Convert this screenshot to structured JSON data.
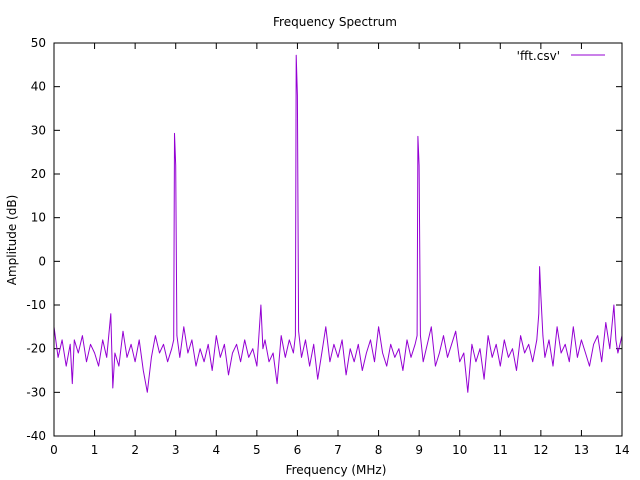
{
  "chart_data": {
    "type": "line",
    "title": "Frequency Spectrum",
    "xlabel": "Frequency (MHz)",
    "ylabel": "Amplitude (dB)",
    "xlim": [
      0,
      14
    ],
    "ylim": [
      -40,
      50
    ],
    "x_ticks": [
      0,
      1,
      2,
      3,
      4,
      5,
      6,
      7,
      8,
      9,
      10,
      11,
      12,
      13,
      14
    ],
    "y_ticks": [
      -40,
      -30,
      -20,
      -10,
      0,
      10,
      20,
      30,
      40,
      50
    ],
    "grid": false,
    "legend_position": "top-right",
    "series": [
      {
        "name": "'fft.csv'",
        "color": "#9400d3",
        "noise_floor_db": -21,
        "peaks": [
          {
            "x": 2.97,
            "y": 29.3
          },
          {
            "x": 5.97,
            "y": 47.2
          },
          {
            "x": 8.97,
            "y": 28.6
          },
          {
            "x": 11.97,
            "y": -1.2
          }
        ],
        "points": [
          [
            0.0,
            -15
          ],
          [
            0.1,
            -22
          ],
          [
            0.2,
            -18
          ],
          [
            0.3,
            -24
          ],
          [
            0.4,
            -19
          ],
          [
            0.45,
            -28
          ],
          [
            0.5,
            -18
          ],
          [
            0.6,
            -21
          ],
          [
            0.7,
            -17
          ],
          [
            0.8,
            -23
          ],
          [
            0.9,
            -19
          ],
          [
            1.0,
            -21
          ],
          [
            1.1,
            -24
          ],
          [
            1.2,
            -18
          ],
          [
            1.3,
            -22
          ],
          [
            1.4,
            -12
          ],
          [
            1.45,
            -29
          ],
          [
            1.5,
            -21
          ],
          [
            1.6,
            -24
          ],
          [
            1.7,
            -16
          ],
          [
            1.8,
            -22
          ],
          [
            1.9,
            -19
          ],
          [
            2.0,
            -23
          ],
          [
            2.1,
            -18
          ],
          [
            2.2,
            -25
          ],
          [
            2.3,
            -30
          ],
          [
            2.4,
            -22
          ],
          [
            2.5,
            -17
          ],
          [
            2.6,
            -21
          ],
          [
            2.7,
            -19
          ],
          [
            2.8,
            -23
          ],
          [
            2.9,
            -20
          ],
          [
            2.95,
            -18
          ],
          [
            2.97,
            29.3
          ],
          [
            3.0,
            22
          ],
          [
            3.03,
            -17
          ],
          [
            3.1,
            -22
          ],
          [
            3.2,
            -15
          ],
          [
            3.3,
            -21
          ],
          [
            3.4,
            -18
          ],
          [
            3.5,
            -24
          ],
          [
            3.6,
            -20
          ],
          [
            3.7,
            -23
          ],
          [
            3.8,
            -19
          ],
          [
            3.9,
            -25
          ],
          [
            4.0,
            -17
          ],
          [
            4.1,
            -22
          ],
          [
            4.2,
            -19
          ],
          [
            4.3,
            -26
          ],
          [
            4.4,
            -21
          ],
          [
            4.5,
            -19
          ],
          [
            4.6,
            -23
          ],
          [
            4.7,
            -18
          ],
          [
            4.8,
            -22
          ],
          [
            4.9,
            -20
          ],
          [
            5.0,
            -24
          ],
          [
            5.05,
            -17
          ],
          [
            5.1,
            -10
          ],
          [
            5.15,
            -20
          ],
          [
            5.2,
            -18
          ],
          [
            5.3,
            -23
          ],
          [
            5.4,
            -21
          ],
          [
            5.5,
            -28
          ],
          [
            5.6,
            -17
          ],
          [
            5.7,
            -22
          ],
          [
            5.8,
            -18
          ],
          [
            5.9,
            -21
          ],
          [
            5.95,
            -17
          ],
          [
            5.97,
            47.2
          ],
          [
            6.0,
            38
          ],
          [
            6.03,
            -16
          ],
          [
            6.1,
            -22
          ],
          [
            6.2,
            -18
          ],
          [
            6.3,
            -24
          ],
          [
            6.4,
            -19
          ],
          [
            6.5,
            -27
          ],
          [
            6.6,
            -21
          ],
          [
            6.7,
            -15
          ],
          [
            6.8,
            -23
          ],
          [
            6.9,
            -19
          ],
          [
            7.0,
            -22
          ],
          [
            7.1,
            -18
          ],
          [
            7.2,
            -26
          ],
          [
            7.3,
            -20
          ],
          [
            7.4,
            -23
          ],
          [
            7.5,
            -19
          ],
          [
            7.6,
            -25
          ],
          [
            7.7,
            -21
          ],
          [
            7.8,
            -18
          ],
          [
            7.9,
            -23
          ],
          [
            8.0,
            -15
          ],
          [
            8.1,
            -21
          ],
          [
            8.2,
            -24
          ],
          [
            8.3,
            -19
          ],
          [
            8.4,
            -22
          ],
          [
            8.5,
            -20
          ],
          [
            8.6,
            -25
          ],
          [
            8.7,
            -18
          ],
          [
            8.8,
            -22
          ],
          [
            8.9,
            -19
          ],
          [
            8.95,
            -17
          ],
          [
            8.97,
            28.6
          ],
          [
            9.0,
            22
          ],
          [
            9.03,
            -17
          ],
          [
            9.1,
            -23
          ],
          [
            9.2,
            -19
          ],
          [
            9.3,
            -15
          ],
          [
            9.4,
            -24
          ],
          [
            9.5,
            -21
          ],
          [
            9.6,
            -17
          ],
          [
            9.7,
            -22
          ],
          [
            9.8,
            -19
          ],
          [
            9.9,
            -16
          ],
          [
            10.0,
            -23
          ],
          [
            10.1,
            -21
          ],
          [
            10.2,
            -30
          ],
          [
            10.3,
            -19
          ],
          [
            10.4,
            -23
          ],
          [
            10.5,
            -20
          ],
          [
            10.6,
            -27
          ],
          [
            10.7,
            -17
          ],
          [
            10.8,
            -22
          ],
          [
            10.9,
            -19
          ],
          [
            11.0,
            -24
          ],
          [
            11.1,
            -18
          ],
          [
            11.2,
            -22
          ],
          [
            11.3,
            -20
          ],
          [
            11.4,
            -25
          ],
          [
            11.5,
            -17
          ],
          [
            11.6,
            -21
          ],
          [
            11.7,
            -19
          ],
          [
            11.8,
            -23
          ],
          [
            11.9,
            -18
          ],
          [
            11.95,
            -12
          ],
          [
            11.97,
            -1.2
          ],
          [
            12.0,
            -8
          ],
          [
            12.05,
            -17
          ],
          [
            12.1,
            -22
          ],
          [
            12.2,
            -18
          ],
          [
            12.3,
            -24
          ],
          [
            12.4,
            -15
          ],
          [
            12.5,
            -21
          ],
          [
            12.6,
            -19
          ],
          [
            12.7,
            -23
          ],
          [
            12.8,
            -15
          ],
          [
            12.9,
            -22
          ],
          [
            13.0,
            -18
          ],
          [
            13.1,
            -21
          ],
          [
            13.2,
            -24
          ],
          [
            13.3,
            -19
          ],
          [
            13.4,
            -17
          ],
          [
            13.5,
            -23
          ],
          [
            13.6,
            -14
          ],
          [
            13.7,
            -20
          ],
          [
            13.8,
            -10
          ],
          [
            13.85,
            -18
          ],
          [
            13.9,
            -21
          ],
          [
            14.0,
            -17
          ]
        ]
      }
    ]
  }
}
